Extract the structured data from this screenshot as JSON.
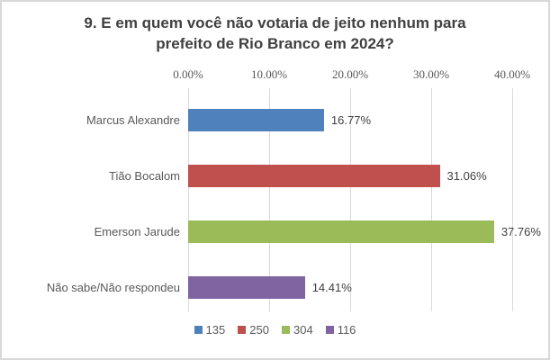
{
  "chart_data": {
    "type": "bar",
    "orientation": "horizontal",
    "title": "9. E em quem você não votaria de jeito nenhum para prefeito de Rio Branco em 2024?",
    "categories": [
      "Marcus Alexandre",
      "Tião Bocalom",
      "Emerson Jarude",
      "Não sabe/Não respondeu"
    ],
    "values": [
      16.77,
      31.06,
      37.76,
      14.41
    ],
    "value_labels": [
      "16.77%",
      "31.06%",
      "37.76%",
      "14.41%"
    ],
    "bar_colors": [
      "#4F81BD",
      "#C0504D",
      "#9BBB59",
      "#8064A2"
    ],
    "x_ticks": [
      "0.00%",
      "10.00%",
      "20.00%",
      "30.00%",
      "40.00%"
    ],
    "axis_max": 40,
    "grid": true,
    "legend_position": "bottom",
    "legend": [
      {
        "label": "135",
        "color": "#4F81BD"
      },
      {
        "label": "250",
        "color": "#C0504D"
      },
      {
        "label": "304",
        "color": "#9BBB59"
      },
      {
        "label": "116",
        "color": "#8064A2"
      }
    ]
  },
  "colors": {
    "background": "#FFFFFF",
    "border": "#D9D9D9",
    "gridline": "#D9D9D9",
    "title_text": "#404040",
    "axis_text": "#595959",
    "category_text": "#595959",
    "value_text": "#404040"
  }
}
